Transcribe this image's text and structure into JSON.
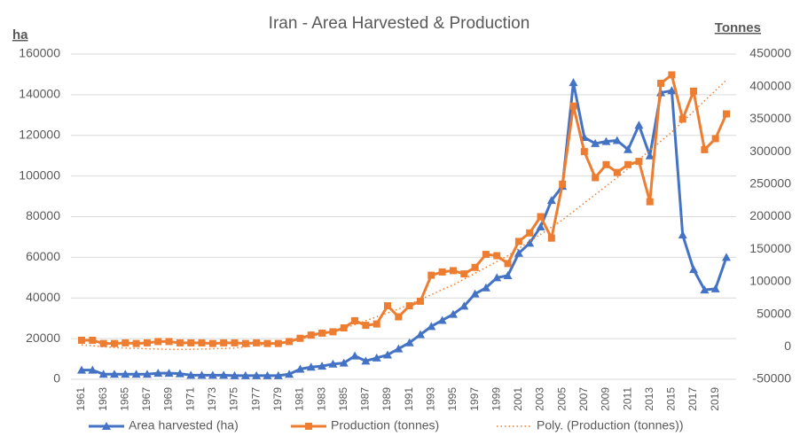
{
  "chart_data": {
    "type": "line",
    "title": "Iran - Area Harvested & Production",
    "y_label": "ha",
    "y2_label": "Tonnes",
    "categories": [
      "1961",
      null,
      "1963",
      null,
      "1965",
      null,
      "1967",
      null,
      "1969",
      null,
      "1971",
      null,
      "1973",
      null,
      "1975",
      null,
      "1977",
      null,
      "1979",
      null,
      "1981",
      null,
      "1983",
      null,
      "1985",
      null,
      "1987",
      null,
      "1989",
      null,
      "1991",
      null,
      "1993",
      null,
      "1995",
      null,
      "1997",
      null,
      "1999",
      null,
      "2001",
      null,
      "2003",
      null,
      "2005",
      null,
      "2007",
      null,
      "2009",
      null,
      "2011",
      null,
      "2013",
      null,
      "2015",
      null,
      "2017",
      null,
      "2019",
      null
    ],
    "series": [
      {
        "name": "Area harvested (ha)",
        "color": "#4472c4",
        "marker": "triangle",
        "axis": "y",
        "values": [
          4500,
          4500,
          2500,
          2500,
          2500,
          2500,
          2500,
          3000,
          3000,
          2800,
          2000,
          2000,
          2000,
          2000,
          1800,
          1800,
          1800,
          1800,
          1800,
          2500,
          5000,
          6000,
          6500,
          7500,
          8000,
          11500,
          9000,
          10500,
          12000,
          15000,
          18000,
          22000,
          26000,
          29000,
          32000,
          36000,
          42000,
          45000,
          50000,
          51000,
          62000,
          67000,
          75000,
          88000,
          95000,
          146000,
          119000,
          116000,
          117000,
          117500,
          113000,
          125000,
          110000,
          141000,
          142000,
          71000,
          54000,
          44000,
          44500,
          60000
        ]
      },
      {
        "name": "Production (tonnes)",
        "color": "#ed7d31",
        "marker": "square",
        "axis": "y2",
        "values": [
          10000,
          10000,
          5000,
          5000,
          6000,
          5000,
          6000,
          8000,
          8000,
          6000,
          6000,
          6000,
          5000,
          6000,
          6000,
          5000,
          6000,
          5000,
          5000,
          8000,
          13000,
          18000,
          21000,
          23000,
          29000,
          40000,
          33000,
          35000,
          63000,
          46000,
          63000,
          70000,
          110000,
          115000,
          117000,
          112000,
          122000,
          142000,
          140000,
          128000,
          162000,
          175000,
          200000,
          167000,
          250000,
          370000,
          300000,
          260000,
          280000,
          268000,
          280000,
          285000,
          223000,
          405000,
          418000,
          350000,
          393000,
          303000,
          320000,
          358000
        ]
      },
      {
        "name": "Poly. (Production (tonnes))",
        "color": "#ed7d31",
        "dash": "dotted",
        "axis": "y2",
        "values": [
          3000,
          1500,
          0,
          -1000,
          -2000,
          -2500,
          -3000,
          -3500,
          -4000,
          -4000,
          -4000,
          -3500,
          -3000,
          -2500,
          -2000,
          0,
          2000,
          4000,
          6000,
          8000,
          12000,
          16000,
          20000,
          24000,
          28000,
          34000,
          40000,
          46000,
          52000,
          58000,
          65000,
          73000,
          80000,
          88000,
          95000,
          104000,
          113000,
          122000,
          131000,
          140000,
          151000,
          162000,
          173000,
          184000,
          195000,
          208000,
          221000,
          234000,
          247000,
          260000,
          274000,
          288000,
          302000,
          316000,
          330000,
          346000,
          362000,
          378000,
          394000,
          410000
        ]
      }
    ],
    "ylim": [
      0,
      160000
    ],
    "yticks": [
      0,
      20000,
      40000,
      60000,
      80000,
      100000,
      120000,
      140000,
      160000
    ],
    "y2lim": [
      -50000,
      450000
    ],
    "y2ticks": [
      -50000,
      0,
      50000,
      100000,
      150000,
      200000,
      250000,
      300000,
      350000,
      400000,
      450000
    ],
    "grid": true,
    "legend": "bottom"
  }
}
